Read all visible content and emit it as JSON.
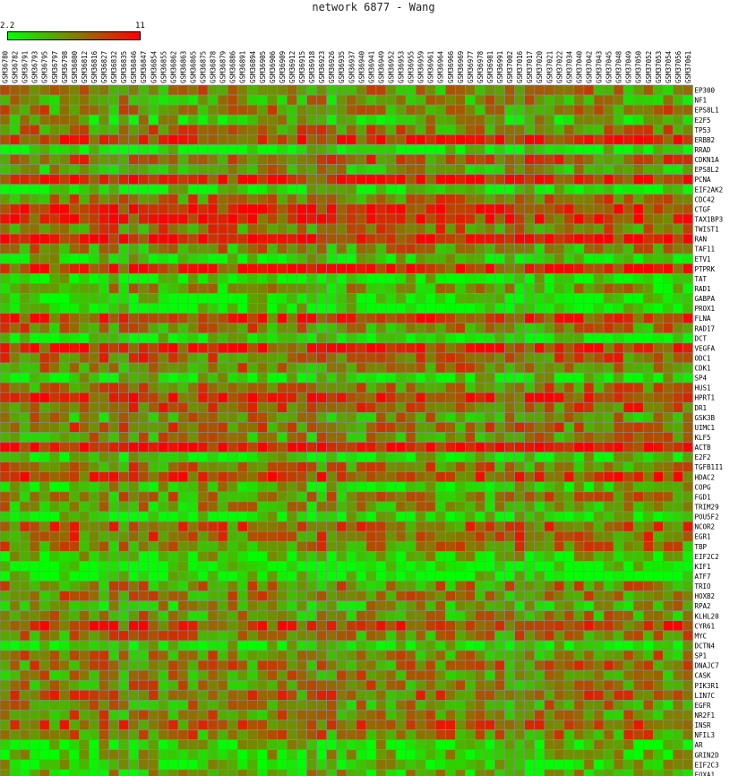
{
  "title": "network 6877 - Wang",
  "chart_data": {
    "type": "heatmap",
    "title": "network 6877 - Wang",
    "color_scale": {
      "min": 2.2,
      "max": 11,
      "min_label": "2.2",
      "max_label": "11",
      "min_color": "#00ff00",
      "max_color": "#ff0000"
    },
    "columns": [
      "GSM36780",
      "GSM36782",
      "GSM36791",
      "GSM36793",
      "GSM36795",
      "GSM36797",
      "GSM36798",
      "GSM36800",
      "GSM36812",
      "GSM36816",
      "GSM36827",
      "GSM36832",
      "GSM36835",
      "GSM36846",
      "GSM36847",
      "GSM36854",
      "GSM36855",
      "GSM36862",
      "GSM36863",
      "GSM36865",
      "GSM36875",
      "GSM36878",
      "GSM36879",
      "GSM36886",
      "GSM36891",
      "GSM36894",
      "GSM36905",
      "GSM36906",
      "GSM36909",
      "GSM36912",
      "GSM36915",
      "GSM36918",
      "GSM36923",
      "GSM36926",
      "GSM36935",
      "GSM36937",
      "GSM36940",
      "GSM36941",
      "GSM36949",
      "GSM36952",
      "GSM36953",
      "GSM36955",
      "GSM36959",
      "GSM36961",
      "GSM36964",
      "GSM36966",
      "GSM36969",
      "GSM36977",
      "GSM36978",
      "GSM36981",
      "GSM36991",
      "GSM37002",
      "GSM37016",
      "GSM37017",
      "GSM37020",
      "GSM37021",
      "GSM37022",
      "GSM37034",
      "GSM37040",
      "GSM37042",
      "GSM37043",
      "GSM37045",
      "GSM37048",
      "GSM37049",
      "GSM37050",
      "GSM37052",
      "GSM37053",
      "GSM37054",
      "GSM37056",
      "GSM37061"
    ],
    "rows": [
      "EP300",
      "NF1",
      "EPS8L1",
      "E2F5",
      "TP53",
      "ERBB2",
      "RRAD",
      "CDKN1A",
      "EPS8L2",
      "PCNA",
      "EIF2AK2",
      "CDC42",
      "CTGF",
      "TAX1BP3",
      "TWIST1",
      "RAN",
      "TAF11",
      "ETV1",
      "PTPRK",
      "TAT",
      "RAD1",
      "GABPA",
      "PROX1",
      "FLNA",
      "RAD17",
      "DCT",
      "VEGFA",
      "ODC1",
      "CDK1",
      "SP4",
      "HUS1",
      "HPRT1",
      "DR1",
      "GSK3B",
      "UIMC1",
      "KLF5",
      "ACTB",
      "E2F2",
      "TGFB1I1",
      "HDAC2",
      "COPG",
      "FGD1",
      "TRIM29",
      "POU5F2",
      "NCOR2",
      "EGR1",
      "TBP",
      "EIF2C2",
      "KIF1",
      "ATF7",
      "TRIO",
      "HOXB2",
      "RPA2",
      "KLHL20",
      "CYR61",
      "MYC",
      "DCTN4",
      "SP1",
      "DNAJC7",
      "CASK",
      "PIK3R1",
      "LIN7C",
      "EGFR",
      "NR2F1",
      "INSR",
      "NFIL3",
      "AR",
      "GRIN2D",
      "EIF2C3",
      "FOXA1"
    ],
    "row_means": [
      6.3,
      5.6,
      6.4,
      4.8,
      6.6,
      9.4,
      2.6,
      7.6,
      5.8,
      9.5,
      3.2,
      6.8,
      9.9,
      9.0,
      7.0,
      10.4,
      6.0,
      3.6,
      9.3,
      3.0,
      5.3,
      2.9,
      3.1,
      8.7,
      6.5,
      3.0,
      9.3,
      7.4,
      6.5,
      3.5,
      6.6,
      9.2,
      7.6,
      5.9,
      7.0,
      6.1,
      10.9,
      3.4,
      6.7,
      8.6,
      4.6,
      6.3,
      5.6,
      3.0,
      7.6,
      7.3,
      6.5,
      4.1,
      2.7,
      2.8,
      6.3,
      6.4,
      5.4,
      6.0,
      8.6,
      6.6,
      3.8,
      6.4,
      6.7,
      6.3,
      6.5,
      7.1,
      6.0,
      6.5,
      7.4,
      6.6,
      4.2,
      4.2,
      4.0,
      4.7
    ],
    "cell_spread": 3.0,
    "grid": true
  }
}
